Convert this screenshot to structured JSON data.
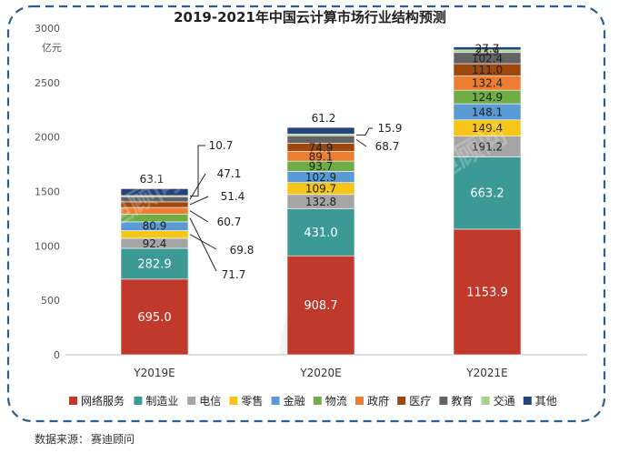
{
  "chart_data": {
    "type": "bar",
    "stacked": true,
    "title": "2019-2021年中国云计算市场行业结构预测",
    "ylabel": "亿元",
    "ylim": [
      0,
      3000
    ],
    "yticks": [
      0,
      500,
      1000,
      1500,
      2000,
      2500,
      3000
    ],
    "categories": [
      "Y2019E",
      "Y2020E",
      "Y2021E"
    ],
    "legend_position": "bottom",
    "series": [
      {
        "name": "网络服务",
        "color": "#C0392B",
        "values": [
          695.0,
          908.7,
          1153.9
        ]
      },
      {
        "name": "制造业",
        "color": "#3C9A96",
        "values": [
          282.9,
          431.0,
          663.2
        ]
      },
      {
        "name": "电信",
        "color": "#A5A5A5",
        "values": [
          92.4,
          132.8,
          191.2
        ]
      },
      {
        "name": "零售",
        "color": "#F5C518",
        "values": [
          69.8,
          109.7,
          149.4
        ]
      },
      {
        "name": "金融",
        "color": "#5B9BD5",
        "values": [
          80.9,
          102.9,
          148.1
        ]
      },
      {
        "name": "物流",
        "color": "#70AD47",
        "values": [
          71.7,
          93.7,
          124.9
        ]
      },
      {
        "name": "政府",
        "color": "#ED7D31",
        "values": [
          60.7,
          89.1,
          132.4
        ]
      },
      {
        "name": "医疗",
        "color": "#9E480E",
        "values": [
          51.4,
          74.9,
          111.0
        ]
      },
      {
        "name": "教育",
        "color": "#636363",
        "values": [
          47.1,
          68.7,
          102.4
        ]
      },
      {
        "name": "交通",
        "color": "#A9D18E",
        "values": [
          10.7,
          15.9,
          23.9
        ]
      },
      {
        "name": "其他",
        "color": "#264478",
        "values": [
          63.1,
          61.2,
          27.7
        ]
      }
    ]
  },
  "watermark": "赛迪顾问",
  "source": {
    "label": "数据来源：",
    "value": "赛迪顾问"
  }
}
